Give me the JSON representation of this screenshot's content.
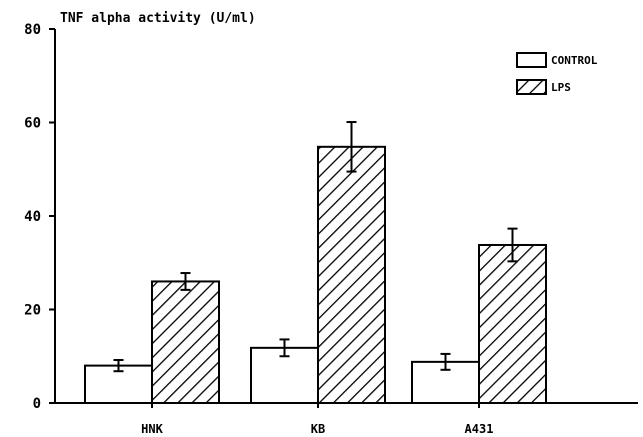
{
  "chart_data": {
    "type": "bar",
    "title": "TNF alpha activity (U/ml)",
    "xlabel": "",
    "ylabel": "",
    "categories": [
      "HNK",
      "KB",
      "A431"
    ],
    "ylim": [
      0,
      80
    ],
    "yticks": [
      "0",
      "20",
      "40",
      "60",
      "80"
    ],
    "series": [
      {
        "name": "CONTROL",
        "values": [
          8,
          11.8,
          8.8
        ],
        "errors": [
          1.2,
          1.8,
          1.7
        ],
        "fill": "none"
      },
      {
        "name": "LPS",
        "values": [
          26,
          54.8,
          33.8
        ],
        "errors": [
          1.8,
          5.3,
          3.5
        ],
        "fill": "hatched"
      }
    ],
    "legend_position": "top-right",
    "grid": false
  },
  "colors": {
    "ink": "#000000",
    "background": "#ffffff"
  }
}
